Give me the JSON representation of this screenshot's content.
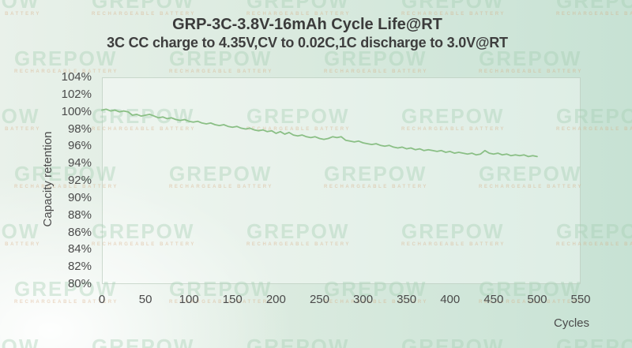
{
  "chart_data": {
    "type": "line",
    "title": "GRP-3C-3.8V-16mAh Cycle Life@RT",
    "subtitle": "3C CC charge to 4.35V,CV to 0.02C,1C discharge to 3.0V@RT",
    "xlabel": "Cycles",
    "ylabel": "Capacity retention",
    "xlim": [
      0,
      550
    ],
    "ylim": [
      80,
      104
    ],
    "grid": false,
    "legend": "none",
    "line_color": "#8abf85",
    "y_tick_labels": [
      "104%",
      "102%",
      "100%",
      "98%",
      "96%",
      "94%",
      "92%",
      "90%",
      "88%",
      "86%",
      "84%",
      "82%",
      "80%"
    ],
    "x_tick_labels": [
      "0",
      "50",
      "100",
      "150",
      "200",
      "250",
      "300",
      "350",
      "400",
      "450",
      "500",
      "550"
    ],
    "series": [
      {
        "name": "Capacity retention",
        "x": [
          0,
          5,
          10,
          15,
          20,
          25,
          30,
          35,
          40,
          45,
          50,
          55,
          60,
          65,
          70,
          75,
          80,
          85,
          90,
          95,
          100,
          105,
          110,
          115,
          120,
          125,
          130,
          135,
          140,
          145,
          150,
          155,
          160,
          165,
          170,
          175,
          180,
          185,
          190,
          195,
          200,
          205,
          210,
          215,
          220,
          225,
          230,
          235,
          240,
          245,
          250,
          255,
          260,
          265,
          270,
          275,
          280,
          285,
          290,
          295,
          300,
          305,
          310,
          315,
          320,
          325,
          330,
          335,
          340,
          345,
          350,
          355,
          360,
          365,
          370,
          375,
          380,
          385,
          390,
          395,
          400,
          405,
          410,
          415,
          420,
          425,
          430,
          435,
          440,
          445,
          450,
          455,
          460,
          465,
          470,
          475,
          480,
          485,
          490,
          495,
          500
        ],
        "values": [
          100.2,
          100.3,
          100.1,
          100.2,
          100.0,
          100.1,
          100.0,
          99.6,
          99.7,
          99.5,
          99.6,
          99.7,
          99.5,
          99.3,
          99.4,
          99.2,
          99.3,
          99.1,
          99.0,
          99.1,
          98.9,
          98.8,
          98.9,
          98.7,
          98.6,
          98.7,
          98.5,
          98.4,
          98.5,
          98.3,
          98.2,
          98.3,
          98.1,
          98.0,
          98.1,
          97.9,
          97.8,
          97.9,
          97.7,
          97.8,
          97.5,
          97.7,
          97.4,
          97.6,
          97.3,
          97.2,
          97.3,
          97.1,
          97.0,
          97.1,
          96.9,
          96.8,
          96.9,
          97.1,
          97.0,
          97.1,
          96.7,
          96.6,
          96.5,
          96.6,
          96.4,
          96.3,
          96.2,
          96.3,
          96.1,
          96.0,
          96.1,
          95.9,
          95.8,
          95.9,
          95.7,
          95.8,
          95.6,
          95.7,
          95.5,
          95.6,
          95.5,
          95.4,
          95.5,
          95.3,
          95.4,
          95.2,
          95.3,
          95.2,
          95.1,
          95.2,
          95.0,
          95.1,
          95.5,
          95.2,
          95.1,
          95.2,
          95.0,
          95.1,
          94.9,
          95.0,
          94.9,
          95.0,
          94.8,
          94.9,
          94.8
        ]
      }
    ]
  },
  "watermark": {
    "text": "GREPOW",
    "subtext": "RECHARGEABLE BATTERY"
  },
  "colors": {
    "background_green": "#c7e2d4",
    "background_white": "#ffffff",
    "title_text": "#3b3b3b",
    "tick_text": "#4a4a4a",
    "line": "#8abf85"
  }
}
